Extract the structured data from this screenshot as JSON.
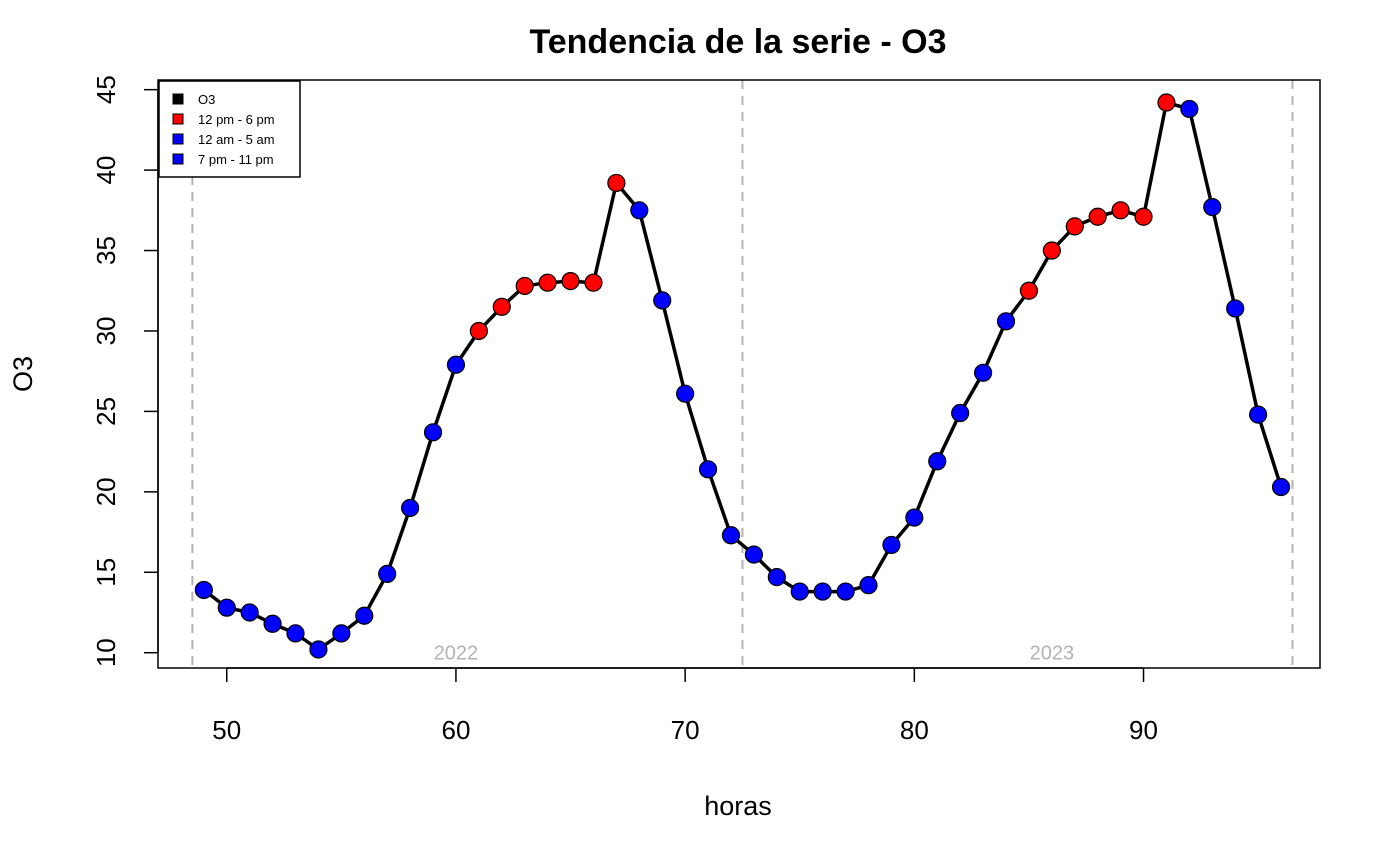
{
  "chart_data": {
    "type": "line",
    "title": "Tendencia de la serie - O3",
    "xlabel": "horas",
    "ylabel": "O3",
    "xlim": [
      47,
      97.7
    ],
    "ylim": [
      9.05,
      45.6
    ],
    "x_ticks": [
      50,
      60,
      70,
      80,
      90
    ],
    "y_ticks": [
      10,
      15,
      20,
      25,
      30,
      35,
      40,
      45
    ],
    "grid": false,
    "legend_position": "top-left",
    "legend": [
      {
        "label": "O3",
        "color": "#000000"
      },
      {
        "label": "12 pm - 6 pm",
        "color": "#ff0000"
      },
      {
        "label": "12 am - 5 am",
        "color": "#0000ff"
      },
      {
        "label": "7 pm - 11 pm",
        "color": "#0000ff"
      }
    ],
    "vertical_lines": [
      48.5,
      72.5,
      96.5
    ],
    "year_labels": [
      {
        "x": 60,
        "y": 10,
        "text": "2022"
      },
      {
        "x": 86,
        "y": 10,
        "text": "2023"
      }
    ],
    "colors": {
      "line": "#000000",
      "afternoon": "#ff0000",
      "other": "#0000ff",
      "vline": "#b3b3b3"
    },
    "series": [
      {
        "name": "O3",
        "x": [
          49,
          50,
          51,
          52,
          53,
          54,
          55,
          56,
          57,
          58,
          59,
          60,
          61,
          62,
          63,
          64,
          65,
          66,
          67,
          68,
          69,
          70,
          71,
          72,
          73,
          74,
          75,
          76,
          77,
          78,
          79,
          80,
          81,
          82,
          83,
          84,
          85,
          86,
          87,
          88,
          89,
          90,
          91,
          92,
          93,
          94,
          95,
          96
        ],
        "y": [
          13.9,
          12.8,
          12.5,
          11.8,
          11.2,
          10.2,
          11.2,
          12.3,
          14.9,
          19.0,
          23.7,
          27.9,
          30.0,
          31.5,
          32.8,
          33.0,
          33.1,
          33.0,
          39.2,
          37.5,
          31.9,
          26.1,
          21.4,
          17.3,
          16.1,
          14.7,
          13.8,
          13.8,
          13.8,
          14.2,
          16.7,
          18.4,
          21.9,
          24.9,
          27.4,
          30.6,
          32.5,
          35.0,
          36.5,
          37.1,
          37.5,
          37.1,
          44.2,
          43.8,
          37.7,
          31.4,
          24.8,
          20.3
        ],
        "colors": [
          "#0000ff",
          "#0000ff",
          "#0000ff",
          "#0000ff",
          "#0000ff",
          "#0000ff",
          "#0000ff",
          "#0000ff",
          "#0000ff",
          "#0000ff",
          "#0000ff",
          "#0000ff",
          "#ff0000",
          "#ff0000",
          "#ff0000",
          "#ff0000",
          "#ff0000",
          "#ff0000",
          "#ff0000",
          "#0000ff",
          "#0000ff",
          "#0000ff",
          "#0000ff",
          "#0000ff",
          "#0000ff",
          "#0000ff",
          "#0000ff",
          "#0000ff",
          "#0000ff",
          "#0000ff",
          "#0000ff",
          "#0000ff",
          "#0000ff",
          "#0000ff",
          "#0000ff",
          "#0000ff",
          "#ff0000",
          "#ff0000",
          "#ff0000",
          "#ff0000",
          "#ff0000",
          "#ff0000",
          "#ff0000",
          "#0000ff",
          "#0000ff",
          "#0000ff",
          "#0000ff",
          "#0000ff"
        ]
      }
    ]
  }
}
